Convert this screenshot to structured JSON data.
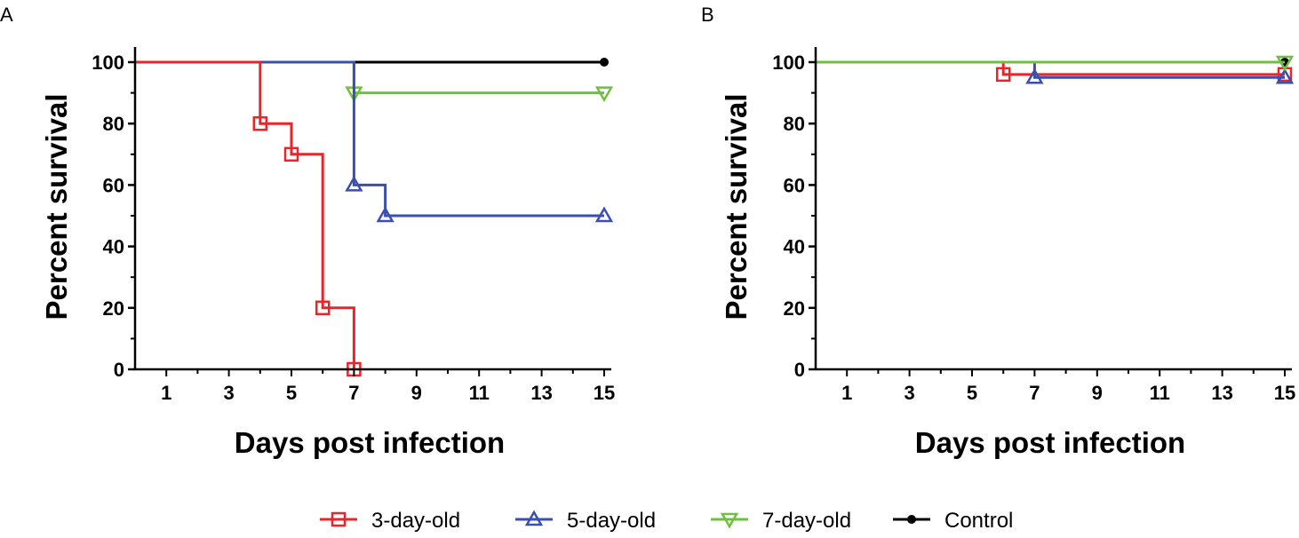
{
  "legend": [
    {
      "name": "3-day-old",
      "color": "#e8262a",
      "marker": "square"
    },
    {
      "name": "5-day-old",
      "color": "#3a4fb0",
      "marker": "triangle-up"
    },
    {
      "name": "7-day-old",
      "color": "#6ec13e",
      "marker": "triangle-down"
    },
    {
      "name": "Control",
      "color": "#000000",
      "marker": "circle"
    }
  ],
  "chart_data": [
    {
      "panel": "A",
      "type": "line",
      "step": true,
      "xlabel": "Days post infection",
      "ylabel": "Percent survival",
      "xlim": [
        0,
        15
      ],
      "ylim": [
        0,
        100
      ],
      "xticks": [
        1,
        3,
        5,
        7,
        9,
        11,
        13,
        15
      ],
      "yticks": [
        0,
        20,
        40,
        60,
        80,
        100
      ],
      "series": [
        {
          "name": "Control",
          "color": "#000000",
          "points": [
            [
              0,
              100
            ],
            [
              15,
              100
            ]
          ],
          "markers": [
            [
              15,
              100
            ]
          ]
        },
        {
          "name": "7-day-old",
          "color": "#6ec13e",
          "points": [
            [
              0,
              100
            ],
            [
              7,
              100
            ],
            [
              7,
              90
            ],
            [
              15,
              90
            ]
          ],
          "markers": [
            [
              7,
              90
            ],
            [
              15,
              90
            ]
          ]
        },
        {
          "name": "5-day-old",
          "color": "#3a4fb0",
          "points": [
            [
              0,
              100
            ],
            [
              7,
              100
            ],
            [
              7,
              60
            ],
            [
              8,
              60
            ],
            [
              8,
              50
            ],
            [
              15,
              50
            ]
          ],
          "markers": [
            [
              7,
              60
            ],
            [
              8,
              50
            ],
            [
              15,
              50
            ]
          ]
        },
        {
          "name": "3-day-old",
          "color": "#e8262a",
          "points": [
            [
              0,
              100
            ],
            [
              4,
              100
            ],
            [
              4,
              80
            ],
            [
              5,
              80
            ],
            [
              5,
              70
            ],
            [
              6,
              70
            ],
            [
              6,
              20
            ],
            [
              7,
              20
            ],
            [
              7,
              0
            ]
          ],
          "markers": [
            [
              4,
              80
            ],
            [
              5,
              70
            ],
            [
              6,
              20
            ],
            [
              7,
              0
            ]
          ]
        }
      ]
    },
    {
      "panel": "B",
      "type": "line",
      "step": true,
      "xlabel": "Days post infection",
      "ylabel": "Percent survival",
      "xlim": [
        0,
        15
      ],
      "ylim": [
        0,
        100
      ],
      "xticks": [
        1,
        3,
        5,
        7,
        9,
        11,
        13,
        15
      ],
      "yticks": [
        0,
        20,
        40,
        60,
        80,
        100
      ],
      "series": [
        {
          "name": "Control",
          "color": "#000000",
          "points": [
            [
              0,
              100
            ],
            [
              15,
              100
            ]
          ],
          "markers": [
            [
              15,
              100
            ]
          ]
        },
        {
          "name": "3-day-old",
          "color": "#e8262a",
          "points": [
            [
              0,
              100
            ],
            [
              6,
              100
            ],
            [
              6,
              96
            ],
            [
              15,
              96
            ]
          ],
          "markers": [
            [
              6,
              96
            ],
            [
              15,
              96
            ]
          ]
        },
        {
          "name": "5-day-old",
          "color": "#3a4fb0",
          "points": [
            [
              0,
              100
            ],
            [
              7,
              100
            ],
            [
              7,
              95
            ],
            [
              15,
              95
            ]
          ],
          "markers": [
            [
              7,
              95
            ],
            [
              15,
              95
            ]
          ]
        },
        {
          "name": "7-day-old",
          "color": "#6ec13e",
          "points": [
            [
              0,
              100
            ],
            [
              15,
              100
            ]
          ],
          "markers": [
            [
              15,
              100
            ]
          ]
        }
      ]
    }
  ]
}
